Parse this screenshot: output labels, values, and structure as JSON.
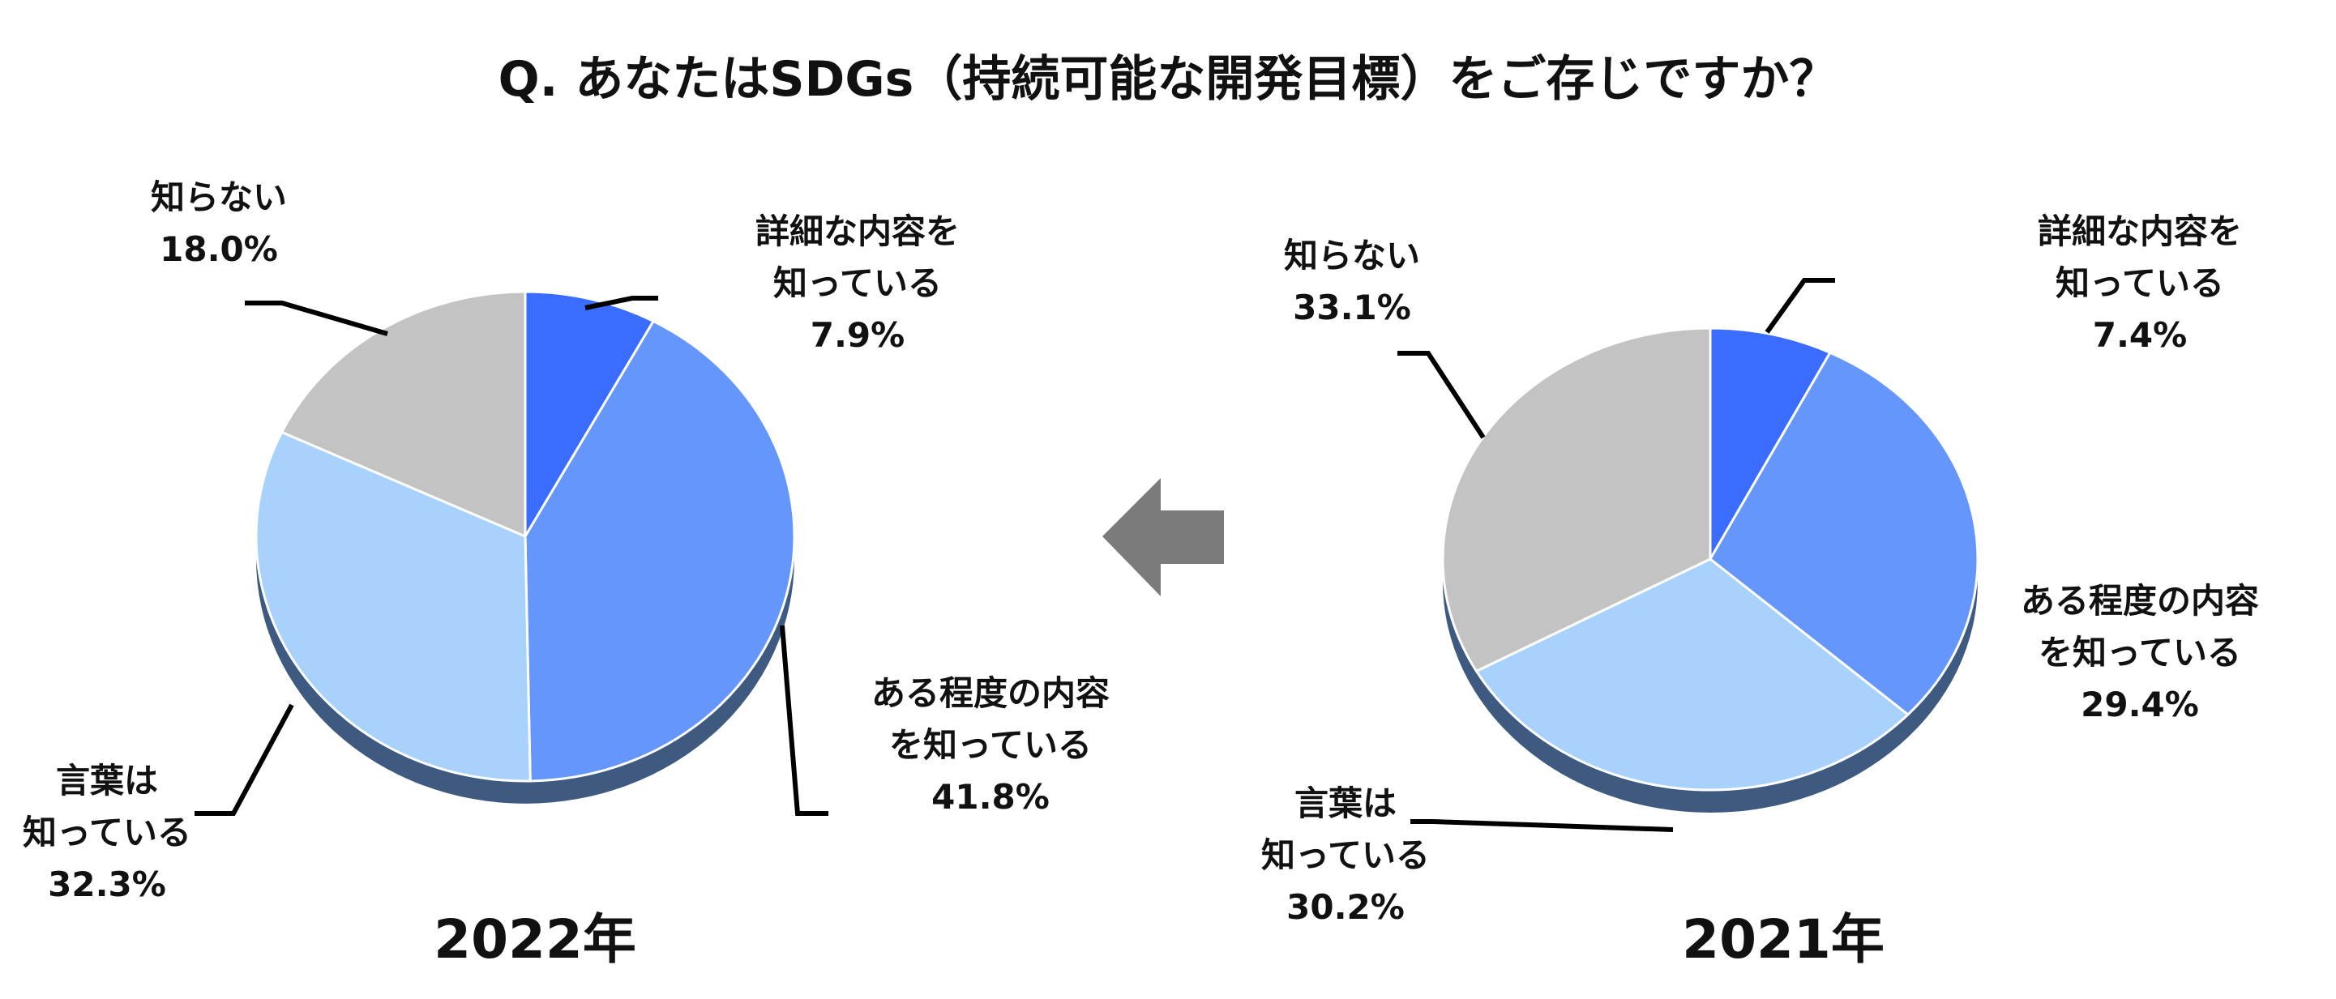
{
  "title": "Q. あなたはSDGs（持続可能な開発目標）をご存じですか？",
  "colors": {
    "detail": "#3a6cff",
    "some": "#6496fb",
    "word": "#a8d2fb",
    "unknown": "#c3c3c3",
    "side": "#3f5a80",
    "arrow": "#7b7b7b",
    "leader": "#000000"
  },
  "arrow_icon": "left-arrow-icon",
  "chart_data": [
    {
      "type": "pie",
      "title": "2022年",
      "categories": [
        "詳細な内容を知っている",
        "ある程度の内容を知っている",
        "言葉は知っている",
        "知らない"
      ],
      "values": [
        7.9,
        41.8,
        32.3,
        18.0
      ],
      "value_labels": [
        "7.9%",
        "41.8%",
        "32.3%",
        "18.0%"
      ],
      "label_lines": [
        [
          "詳細な内容を",
          "知っている"
        ],
        [
          "ある程度の内容",
          "を知っている"
        ],
        [
          "言葉は",
          "知っている"
        ],
        [
          "知らない"
        ]
      ],
      "colors": [
        "#3a6cff",
        "#6496fb",
        "#a8d2fb",
        "#c3c3c3"
      ]
    },
    {
      "type": "pie",
      "title": "2021年",
      "categories": [
        "詳細な内容を知っている",
        "ある程度の内容を知っている",
        "言葉は知っている",
        "知らない"
      ],
      "values": [
        7.4,
        29.4,
        30.2,
        33.1
      ],
      "value_labels": [
        "7.4%",
        "29.4%",
        "30.2%",
        "33.1%"
      ],
      "label_lines": [
        [
          "詳細な内容を",
          "知っている"
        ],
        [
          "ある程度の内容",
          "を知っている"
        ],
        [
          "言葉は",
          "知っている"
        ],
        [
          "知らない"
        ]
      ],
      "colors": [
        "#3a6cff",
        "#6496fb",
        "#a8d2fb",
        "#c3c3c3"
      ]
    }
  ]
}
